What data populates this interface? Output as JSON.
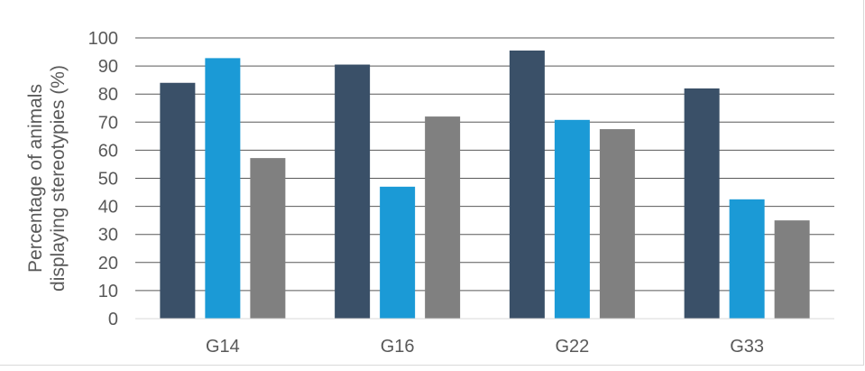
{
  "chart_data": {
    "type": "bar",
    "categories": [
      "G14",
      "G16",
      "G22",
      "G33"
    ],
    "series": [
      {
        "values": [
          84,
          90.5,
          95.5,
          82
        ],
        "color": "#3a5068"
      },
      {
        "values": [
          92.8,
          47,
          70.8,
          42.5
        ],
        "color": "#1b9ad6"
      },
      {
        "values": [
          57.2,
          72,
          67.5,
          35
        ],
        "color": "#808080"
      }
    ],
    "title": "",
    "xlabel": "",
    "ylabel": [
      "Percentage of animals",
      "displaying stereotypies (%)"
    ],
    "ylim": [
      0,
      100
    ],
    "yticks": [
      0,
      10,
      20,
      30,
      40,
      50,
      60,
      70,
      80,
      90,
      100
    ],
    "grid": true,
    "legend": "none"
  }
}
